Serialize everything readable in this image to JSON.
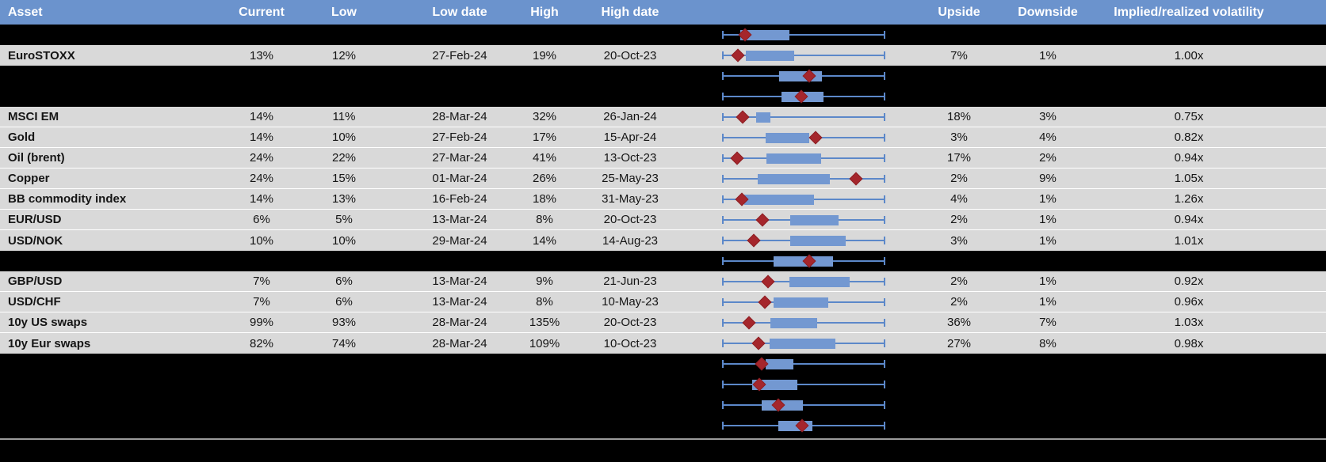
{
  "header": {
    "asset": "Asset",
    "current": "Current",
    "low": "Low",
    "low_date": "Low date",
    "high": "High",
    "high_date": "High date",
    "upside": "Upside",
    "downside": "Downside",
    "ivol": "Implied/realized volatility"
  },
  "colors": {
    "header-bg": "#6b93cd",
    "row-gray": "#d9d9d9",
    "row-black": "#000000",
    "box-fill": "#7398d1",
    "whisker": "#5c88c9",
    "marker": "#a5262c",
    "divider": "#9b9b9b"
  },
  "chart_data": {
    "type": "table",
    "description": "Asset implied volatility table with 1-year range box-whisker sparklines; red diamond marks current level; plot fractions are 0-1 of the whisker span (low-to-high range)",
    "columns": [
      "Asset",
      "Current",
      "Low",
      "Low date",
      "High",
      "High date",
      "Upside",
      "Downside",
      "Implied/realized volatility"
    ],
    "rows_ref": "rows"
  },
  "rows": [
    {
      "bg": "black",
      "asset": "",
      "current": "",
      "low": "",
      "low_date": "",
      "high": "",
      "high_date": "",
      "upside": "",
      "downside": "",
      "ivol": "",
      "plot": {
        "box_start": 0.112,
        "box_end": 0.413,
        "marker": 0.141
      }
    },
    {
      "bg": "gray",
      "asset": "EuroSTOXX",
      "current": "13%",
      "low": "12%",
      "low_date": "27-Feb-24",
      "high": "19%",
      "high_date": "20-Oct-23",
      "upside": "7%",
      "downside": "1%",
      "ivol": "1.00x",
      "plot": {
        "box_start": 0.146,
        "box_end": 0.442,
        "marker": 0.097
      }
    },
    {
      "bg": "black",
      "asset": "",
      "current": "",
      "low": "",
      "low_date": "",
      "high": "",
      "high_date": "",
      "upside": "",
      "downside": "",
      "ivol": "",
      "plot": {
        "box_start": 0.35,
        "box_end": 0.612,
        "marker": 0.534
      }
    },
    {
      "bg": "black",
      "asset": "",
      "current": "",
      "low": "",
      "low_date": "",
      "high": "",
      "high_date": "",
      "upside": "",
      "downside": "",
      "ivol": "",
      "plot": {
        "box_start": 0.364,
        "box_end": 0.621,
        "marker": 0.485
      }
    },
    {
      "bg": "gray",
      "asset": "MSCI EM",
      "current": "14%",
      "low": "11%",
      "low_date": "28-Mar-24",
      "high": "32%",
      "high_date": "26-Jan-24",
      "upside": "18%",
      "downside": "3%",
      "ivol": "0.75x",
      "plot": {
        "box_start": 0.209,
        "box_end": 0.296,
        "marker": 0.126
      }
    },
    {
      "bg": "gray",
      "asset": "Gold",
      "current": "14%",
      "low": "10%",
      "low_date": "27-Feb-24",
      "high": "17%",
      "high_date": "15-Apr-24",
      "upside": "3%",
      "downside": "4%",
      "ivol": "0.82x",
      "plot": {
        "box_start": 0.267,
        "box_end": 0.534,
        "marker": 0.573
      }
    },
    {
      "bg": "gray",
      "asset": "Oil (brent)",
      "current": "24%",
      "low": "22%",
      "low_date": "27-Mar-24",
      "high": "41%",
      "high_date": "13-Oct-23",
      "upside": "17%",
      "downside": "2%",
      "ivol": "0.94x",
      "plot": {
        "box_start": 0.272,
        "box_end": 0.607,
        "marker": 0.092
      }
    },
    {
      "bg": "gray",
      "asset": "Copper",
      "current": "24%",
      "low": "15%",
      "low_date": "01-Mar-24",
      "high": "26%",
      "high_date": "25-May-23",
      "upside": "2%",
      "downside": "9%",
      "ivol": "1.05x",
      "plot": {
        "box_start": 0.218,
        "box_end": 0.66,
        "marker": 0.82
      }
    },
    {
      "bg": "gray",
      "asset": "BB commodity index",
      "current": "14%",
      "low": "13%",
      "low_date": "16-Feb-24",
      "high": "18%",
      "high_date": "31-May-23",
      "upside": "4%",
      "downside": "1%",
      "ivol": "1.26x",
      "plot": {
        "box_start": 0.136,
        "box_end": 0.563,
        "marker": 0.121
      }
    },
    {
      "bg": "gray",
      "asset": "EUR/USD",
      "current": "6%",
      "low": "5%",
      "low_date": "13-Mar-24",
      "high": "8%",
      "high_date": "20-Oct-23",
      "upside": "2%",
      "downside": "1%",
      "ivol": "0.94x",
      "plot": {
        "box_start": 0.417,
        "box_end": 0.714,
        "marker": 0.248
      }
    },
    {
      "bg": "gray",
      "asset": "USD/NOK",
      "current": "10%",
      "low": "10%",
      "low_date": "29-Mar-24",
      "high": "14%",
      "high_date": "14-Aug-23",
      "upside": "3%",
      "downside": "1%",
      "ivol": "1.01x",
      "plot": {
        "box_start": 0.417,
        "box_end": 0.757,
        "marker": 0.194
      }
    },
    {
      "bg": "black",
      "asset": "",
      "current": "",
      "low": "",
      "low_date": "",
      "high": "",
      "high_date": "",
      "upside": "",
      "downside": "",
      "ivol": "",
      "plot": {
        "box_start": 0.316,
        "box_end": 0.68,
        "marker": 0.534
      }
    },
    {
      "bg": "gray",
      "asset": "GBP/USD",
      "current": "7%",
      "low": "6%",
      "low_date": "13-Mar-24",
      "high": "9%",
      "high_date": "21-Jun-23",
      "upside": "2%",
      "downside": "1%",
      "ivol": "0.92x",
      "plot": {
        "box_start": 0.413,
        "box_end": 0.782,
        "marker": 0.282
      }
    },
    {
      "bg": "gray",
      "asset": "USD/CHF",
      "current": "7%",
      "low": "6%",
      "low_date": "13-Mar-24",
      "high": "8%",
      "high_date": "10-May-23",
      "upside": "2%",
      "downside": "1%",
      "ivol": "0.96x",
      "plot": {
        "box_start": 0.316,
        "box_end": 0.65,
        "marker": 0.262
      }
    },
    {
      "bg": "gray",
      "asset": "10y US swaps",
      "current": "99%",
      "low": "93%",
      "low_date": "28-Mar-24",
      "high": "135%",
      "high_date": "20-Oct-23",
      "upside": "36%",
      "downside": "7%",
      "ivol": "1.03x",
      "plot": {
        "box_start": 0.296,
        "box_end": 0.583,
        "marker": 0.165
      }
    },
    {
      "bg": "gray",
      "asset": "10y Eur swaps",
      "current": "82%",
      "low": "74%",
      "low_date": "28-Mar-24",
      "high": "109%",
      "high_date": "10-Oct-23",
      "upside": "27%",
      "downside": "8%",
      "ivol": "0.98x",
      "plot": {
        "box_start": 0.291,
        "box_end": 0.694,
        "marker": 0.223
      }
    },
    {
      "bg": "black",
      "asset": "",
      "current": "",
      "low": "",
      "low_date": "",
      "high": "",
      "high_date": "",
      "upside": "",
      "downside": "",
      "ivol": "",
      "plot": {
        "box_start": 0.267,
        "box_end": 0.437,
        "marker": 0.243
      }
    },
    {
      "bg": "black",
      "asset": "",
      "current": "",
      "low": "",
      "low_date": "",
      "high": "",
      "high_date": "",
      "upside": "",
      "downside": "",
      "ivol": "",
      "plot": {
        "box_start": 0.184,
        "box_end": 0.461,
        "marker": 0.228
      }
    },
    {
      "bg": "black",
      "asset": "",
      "current": "",
      "low": "",
      "low_date": "",
      "high": "",
      "high_date": "",
      "upside": "",
      "downside": "",
      "ivol": "",
      "plot": {
        "box_start": 0.243,
        "box_end": 0.495,
        "marker": 0.345
      }
    },
    {
      "bg": "black",
      "asset": "",
      "current": "",
      "low": "",
      "low_date": "",
      "high": "",
      "high_date": "",
      "upside": "",
      "downside": "",
      "ivol": "",
      "plot": {
        "box_start": 0.345,
        "box_end": 0.553,
        "marker": 0.49
      }
    }
  ]
}
